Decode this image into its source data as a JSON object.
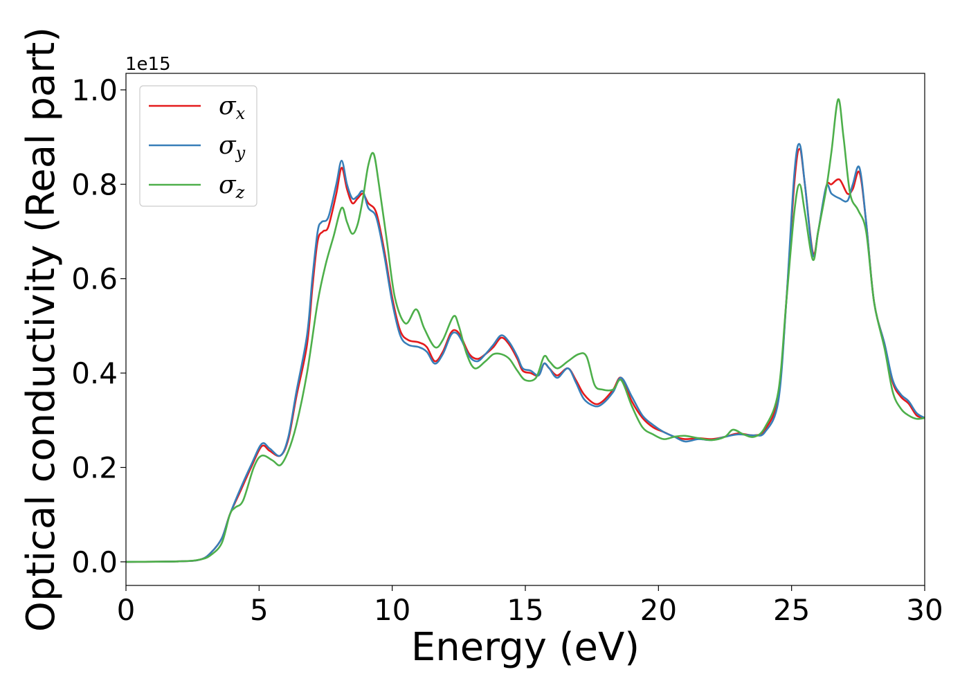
{
  "chart_data": {
    "type": "line",
    "xlabel": "Energy (eV)",
    "ylabel": "Optical conductivity (Real part)",
    "y_offset_label": "1e15",
    "xlim": [
      0,
      30
    ],
    "ylim": [
      -0.05,
      1.035
    ],
    "x_ticks": [
      0,
      5,
      10,
      15,
      20,
      25,
      30
    ],
    "y_ticks": [
      0.0,
      0.2,
      0.4,
      0.6,
      0.8,
      1.0
    ],
    "x_tick_labels": [
      "0",
      "5",
      "10",
      "15",
      "20",
      "25",
      "30"
    ],
    "y_tick_labels": [
      "0.0",
      "0.2",
      "0.4",
      "0.6",
      "0.8",
      "1.0"
    ],
    "grid": false,
    "legend_position": "top-left",
    "series": [
      {
        "name": "σx",
        "symbol": "σ",
        "subscript": "x",
        "color": "#e41a1c",
        "points": [
          [
            0,
            0
          ],
          [
            2,
            0.001
          ],
          [
            2.8,
            0.005
          ],
          [
            3.2,
            0.02
          ],
          [
            3.6,
            0.05
          ],
          [
            3.9,
            0.1
          ],
          [
            4.3,
            0.15
          ],
          [
            4.7,
            0.2
          ],
          [
            5.1,
            0.245
          ],
          [
            5.4,
            0.235
          ],
          [
            5.8,
            0.225
          ],
          [
            6.1,
            0.26
          ],
          [
            6.4,
            0.35
          ],
          [
            6.8,
            0.46
          ],
          [
            7.0,
            0.58
          ],
          [
            7.2,
            0.68
          ],
          [
            7.4,
            0.7
          ],
          [
            7.6,
            0.71
          ],
          [
            7.9,
            0.78
          ],
          [
            8.1,
            0.835
          ],
          [
            8.3,
            0.79
          ],
          [
            8.5,
            0.76
          ],
          [
            8.7,
            0.77
          ],
          [
            8.9,
            0.78
          ],
          [
            9.1,
            0.76
          ],
          [
            9.4,
            0.74
          ],
          [
            9.7,
            0.66
          ],
          [
            10.0,
            0.56
          ],
          [
            10.3,
            0.49
          ],
          [
            10.6,
            0.47
          ],
          [
            11.0,
            0.465
          ],
          [
            11.3,
            0.455
          ],
          [
            11.6,
            0.425
          ],
          [
            11.9,
            0.445
          ],
          [
            12.2,
            0.485
          ],
          [
            12.4,
            0.49
          ],
          [
            12.6,
            0.475
          ],
          [
            12.9,
            0.44
          ],
          [
            13.2,
            0.43
          ],
          [
            13.5,
            0.44
          ],
          [
            13.8,
            0.455
          ],
          [
            14.1,
            0.475
          ],
          [
            14.4,
            0.46
          ],
          [
            14.7,
            0.43
          ],
          [
            14.9,
            0.405
          ],
          [
            15.2,
            0.4
          ],
          [
            15.5,
            0.395
          ],
          [
            15.7,
            0.42
          ],
          [
            15.9,
            0.41
          ],
          [
            16.2,
            0.395
          ],
          [
            16.6,
            0.41
          ],
          [
            16.9,
            0.385
          ],
          [
            17.2,
            0.355
          ],
          [
            17.6,
            0.335
          ],
          [
            17.9,
            0.34
          ],
          [
            18.3,
            0.365
          ],
          [
            18.6,
            0.39
          ],
          [
            19.0,
            0.34
          ],
          [
            19.4,
            0.305
          ],
          [
            19.8,
            0.285
          ],
          [
            20.2,
            0.275
          ],
          [
            20.6,
            0.265
          ],
          [
            21.0,
            0.26
          ],
          [
            21.5,
            0.262
          ],
          [
            22.0,
            0.26
          ],
          [
            22.5,
            0.265
          ],
          [
            23.0,
            0.272
          ],
          [
            23.6,
            0.268
          ],
          [
            24.0,
            0.28
          ],
          [
            24.5,
            0.35
          ],
          [
            24.8,
            0.55
          ],
          [
            25.1,
            0.8
          ],
          [
            25.3,
            0.875
          ],
          [
            25.5,
            0.8
          ],
          [
            25.8,
            0.655
          ],
          [
            26.0,
            0.7
          ],
          [
            26.3,
            0.795
          ],
          [
            26.5,
            0.8
          ],
          [
            26.8,
            0.81
          ],
          [
            27.1,
            0.78
          ],
          [
            27.3,
            0.79
          ],
          [
            27.55,
            0.825
          ],
          [
            27.8,
            0.72
          ],
          [
            28.1,
            0.55
          ],
          [
            28.5,
            0.46
          ],
          [
            28.8,
            0.38
          ],
          [
            29.1,
            0.35
          ],
          [
            29.4,
            0.335
          ],
          [
            29.7,
            0.31
          ],
          [
            30,
            0.305
          ]
        ]
      },
      {
        "name": "σy",
        "symbol": "σ",
        "subscript": "y",
        "color": "#377eb8",
        "points": [
          [
            0,
            0
          ],
          [
            2,
            0.001
          ],
          [
            2.8,
            0.005
          ],
          [
            3.2,
            0.02
          ],
          [
            3.6,
            0.05
          ],
          [
            3.9,
            0.1
          ],
          [
            4.3,
            0.155
          ],
          [
            4.7,
            0.205
          ],
          [
            5.1,
            0.25
          ],
          [
            5.4,
            0.24
          ],
          [
            5.8,
            0.225
          ],
          [
            6.1,
            0.265
          ],
          [
            6.4,
            0.36
          ],
          [
            6.8,
            0.48
          ],
          [
            7.0,
            0.6
          ],
          [
            7.2,
            0.7
          ],
          [
            7.35,
            0.72
          ],
          [
            7.6,
            0.73
          ],
          [
            7.9,
            0.8
          ],
          [
            8.1,
            0.85
          ],
          [
            8.3,
            0.8
          ],
          [
            8.5,
            0.77
          ],
          [
            8.7,
            0.775
          ],
          [
            8.9,
            0.785
          ],
          [
            9.1,
            0.75
          ],
          [
            9.4,
            0.73
          ],
          [
            9.7,
            0.65
          ],
          [
            10.0,
            0.55
          ],
          [
            10.3,
            0.48
          ],
          [
            10.6,
            0.46
          ],
          [
            11.0,
            0.455
          ],
          [
            11.3,
            0.445
          ],
          [
            11.6,
            0.42
          ],
          [
            11.9,
            0.44
          ],
          [
            12.2,
            0.48
          ],
          [
            12.4,
            0.485
          ],
          [
            12.6,
            0.47
          ],
          [
            12.9,
            0.435
          ],
          [
            13.2,
            0.425
          ],
          [
            13.5,
            0.44
          ],
          [
            13.8,
            0.46
          ],
          [
            14.1,
            0.48
          ],
          [
            14.4,
            0.465
          ],
          [
            14.7,
            0.435
          ],
          [
            14.9,
            0.41
          ],
          [
            15.2,
            0.405
          ],
          [
            15.5,
            0.395
          ],
          [
            15.7,
            0.42
          ],
          [
            15.9,
            0.41
          ],
          [
            16.2,
            0.39
          ],
          [
            16.6,
            0.41
          ],
          [
            16.9,
            0.38
          ],
          [
            17.2,
            0.345
          ],
          [
            17.6,
            0.33
          ],
          [
            17.9,
            0.335
          ],
          [
            18.3,
            0.36
          ],
          [
            18.6,
            0.39
          ],
          [
            19.0,
            0.35
          ],
          [
            19.4,
            0.31
          ],
          [
            19.8,
            0.29
          ],
          [
            20.2,
            0.275
          ],
          [
            20.6,
            0.265
          ],
          [
            21.0,
            0.255
          ],
          [
            21.5,
            0.26
          ],
          [
            22.0,
            0.258
          ],
          [
            22.5,
            0.265
          ],
          [
            23.0,
            0.27
          ],
          [
            23.6,
            0.268
          ],
          [
            24.0,
            0.275
          ],
          [
            24.5,
            0.34
          ],
          [
            24.8,
            0.55
          ],
          [
            25.1,
            0.82
          ],
          [
            25.3,
            0.885
          ],
          [
            25.5,
            0.8
          ],
          [
            25.8,
            0.65
          ],
          [
            26.0,
            0.7
          ],
          [
            26.3,
            0.795
          ],
          [
            26.5,
            0.78
          ],
          [
            26.8,
            0.77
          ],
          [
            27.1,
            0.765
          ],
          [
            27.3,
            0.8
          ],
          [
            27.55,
            0.835
          ],
          [
            27.8,
            0.72
          ],
          [
            28.1,
            0.55
          ],
          [
            28.5,
            0.46
          ],
          [
            28.8,
            0.385
          ],
          [
            29.1,
            0.355
          ],
          [
            29.4,
            0.34
          ],
          [
            29.7,
            0.315
          ],
          [
            30,
            0.305
          ]
        ]
      },
      {
        "name": "σz",
        "symbol": "σ",
        "subscript": "z",
        "color": "#4daf4a",
        "points": [
          [
            0,
            0
          ],
          [
            2,
            0.001
          ],
          [
            2.8,
            0.005
          ],
          [
            3.2,
            0.015
          ],
          [
            3.6,
            0.04
          ],
          [
            3.9,
            0.1
          ],
          [
            4.1,
            0.115
          ],
          [
            4.4,
            0.13
          ],
          [
            4.8,
            0.2
          ],
          [
            5.1,
            0.225
          ],
          [
            5.5,
            0.215
          ],
          [
            5.8,
            0.205
          ],
          [
            6.1,
            0.235
          ],
          [
            6.4,
            0.29
          ],
          [
            6.8,
            0.4
          ],
          [
            7.2,
            0.55
          ],
          [
            7.5,
            0.63
          ],
          [
            7.8,
            0.69
          ],
          [
            8.1,
            0.75
          ],
          [
            8.3,
            0.72
          ],
          [
            8.5,
            0.695
          ],
          [
            8.7,
            0.715
          ],
          [
            8.9,
            0.77
          ],
          [
            9.1,
            0.84
          ],
          [
            9.3,
            0.865
          ],
          [
            9.5,
            0.8
          ],
          [
            9.8,
            0.68
          ],
          [
            10.1,
            0.56
          ],
          [
            10.5,
            0.505
          ],
          [
            10.9,
            0.535
          ],
          [
            11.2,
            0.495
          ],
          [
            11.6,
            0.455
          ],
          [
            11.9,
            0.47
          ],
          [
            12.3,
            0.52
          ],
          [
            12.5,
            0.5
          ],
          [
            12.8,
            0.44
          ],
          [
            13.1,
            0.41
          ],
          [
            13.5,
            0.425
          ],
          [
            13.8,
            0.44
          ],
          [
            14.1,
            0.44
          ],
          [
            14.4,
            0.43
          ],
          [
            14.7,
            0.405
          ],
          [
            15.0,
            0.385
          ],
          [
            15.4,
            0.39
          ],
          [
            15.7,
            0.435
          ],
          [
            15.9,
            0.425
          ],
          [
            16.2,
            0.41
          ],
          [
            16.6,
            0.425
          ],
          [
            17.0,
            0.44
          ],
          [
            17.3,
            0.435
          ],
          [
            17.6,
            0.375
          ],
          [
            17.9,
            0.365
          ],
          [
            18.3,
            0.365
          ],
          [
            18.6,
            0.385
          ],
          [
            19.0,
            0.33
          ],
          [
            19.4,
            0.285
          ],
          [
            19.8,
            0.27
          ],
          [
            20.2,
            0.26
          ],
          [
            20.6,
            0.265
          ],
          [
            21.0,
            0.267
          ],
          [
            21.5,
            0.262
          ],
          [
            22.0,
            0.258
          ],
          [
            22.5,
            0.265
          ],
          [
            22.8,
            0.28
          ],
          [
            23.2,
            0.27
          ],
          [
            23.6,
            0.265
          ],
          [
            24.0,
            0.285
          ],
          [
            24.5,
            0.36
          ],
          [
            24.8,
            0.55
          ],
          [
            25.1,
            0.74
          ],
          [
            25.3,
            0.8
          ],
          [
            25.5,
            0.74
          ],
          [
            25.8,
            0.64
          ],
          [
            26.0,
            0.7
          ],
          [
            26.3,
            0.79
          ],
          [
            26.5,
            0.87
          ],
          [
            26.75,
            0.98
          ],
          [
            26.95,
            0.9
          ],
          [
            27.2,
            0.78
          ],
          [
            27.5,
            0.745
          ],
          [
            27.8,
            0.7
          ],
          [
            28.1,
            0.55
          ],
          [
            28.5,
            0.45
          ],
          [
            28.8,
            0.36
          ],
          [
            29.1,
            0.325
          ],
          [
            29.4,
            0.31
          ],
          [
            29.7,
            0.303
          ],
          [
            30,
            0.305
          ]
        ]
      }
    ]
  }
}
